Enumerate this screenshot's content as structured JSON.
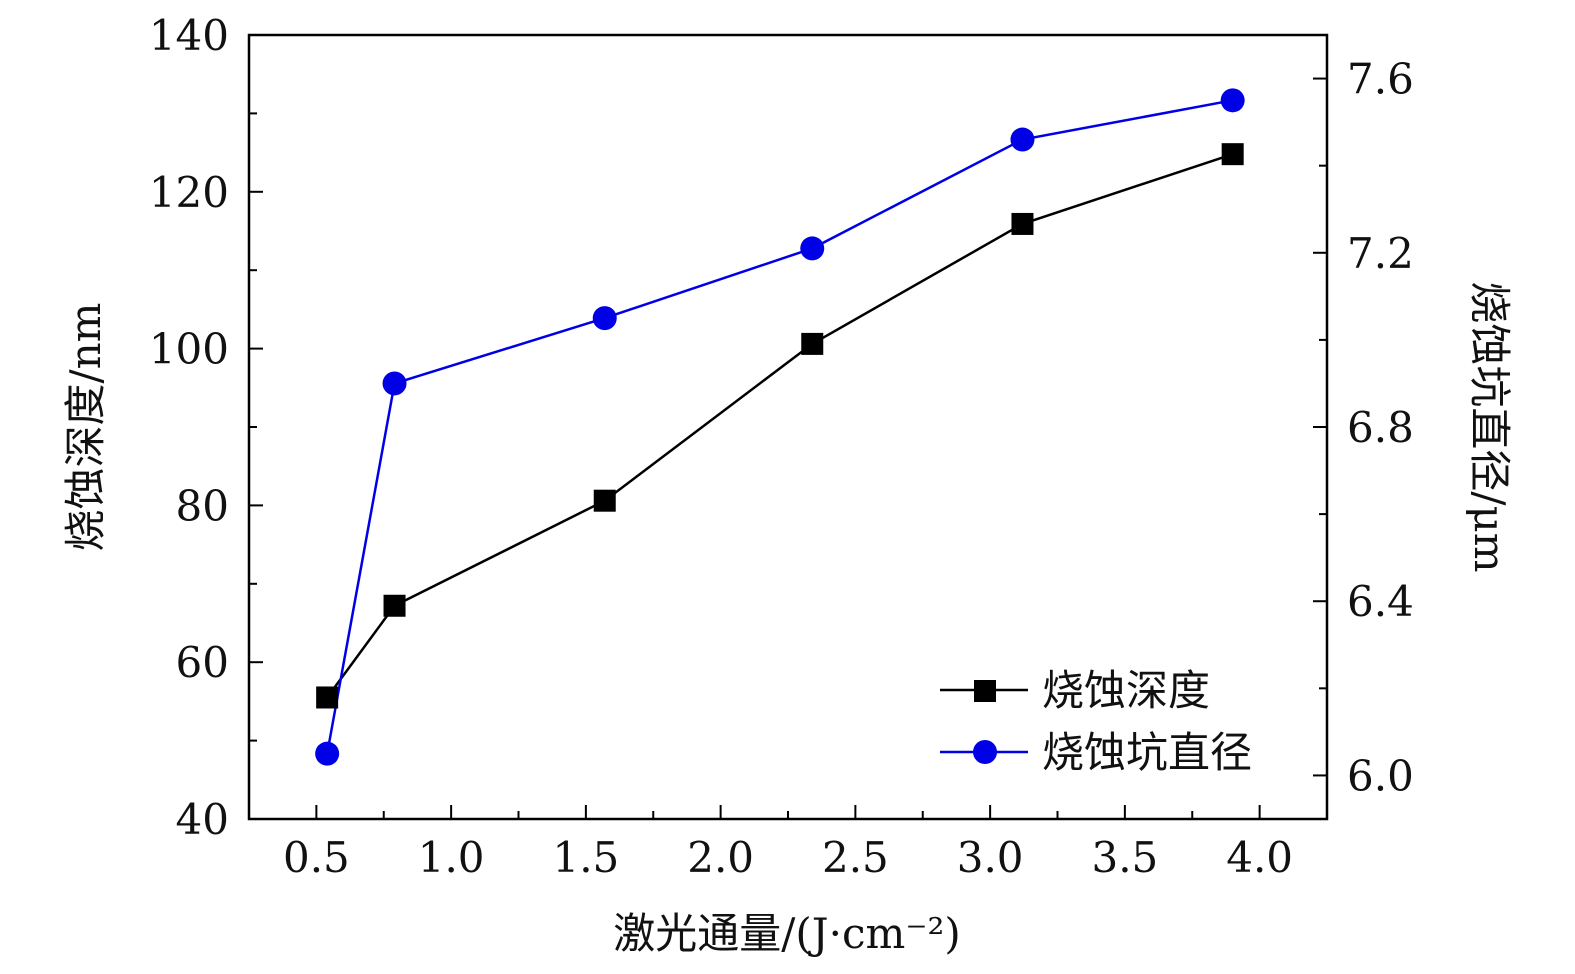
{
  "chart_data": {
    "type": "line",
    "x": [
      0.54,
      0.79,
      1.57,
      2.34,
      3.12,
      3.9
    ],
    "xlabel": "激光通量/(J·cm⁻²)",
    "ylabel_left": "烧蚀深度/nm",
    "ylabel_right": "烧蚀坑直径/μm",
    "xlim": [
      0.25,
      4.25
    ],
    "ylim_left": [
      40,
      140
    ],
    "ylim_right": [
      5.9,
      7.7
    ],
    "x_ticks": [
      "0.5",
      "1.0",
      "1.5",
      "2.0",
      "2.5",
      "3.0",
      "3.5",
      "4.0"
    ],
    "y_left_ticks": [
      "40",
      "60",
      "80",
      "100",
      "120",
      "140"
    ],
    "y_right_ticks": [
      "6.0",
      "6.4",
      "6.8",
      "7.2",
      "7.6"
    ],
    "legend_position": "lower-right",
    "series": [
      {
        "name": "烧蚀深度",
        "axis": "left",
        "marker": "square",
        "color": "#000000",
        "values": [
          55.5,
          67.2,
          80.6,
          100.6,
          115.9,
          124.8
        ]
      },
      {
        "name": "烧蚀坑直径",
        "axis": "right",
        "marker": "circle",
        "color": "#0000e6",
        "values": [
          6.05,
          6.9,
          7.05,
          7.21,
          7.46,
          7.55
        ]
      }
    ]
  }
}
